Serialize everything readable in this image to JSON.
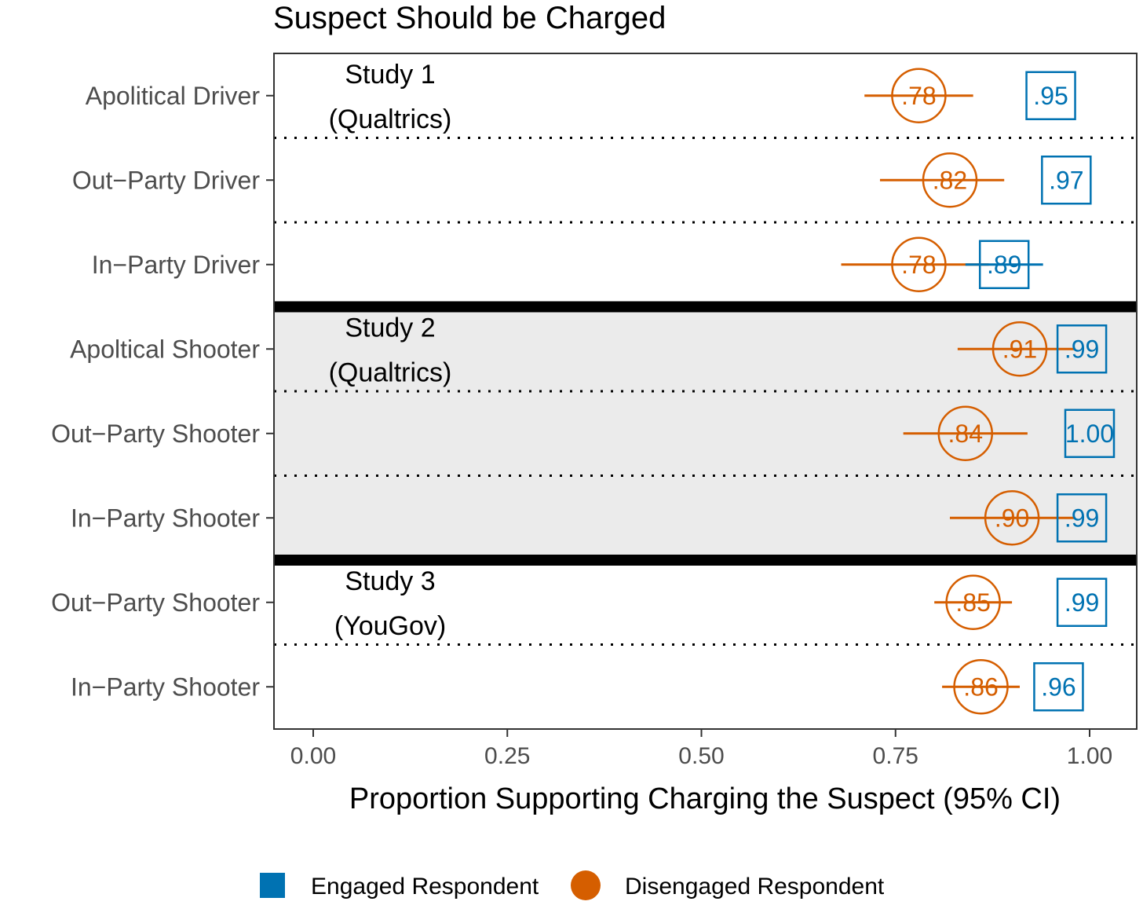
{
  "chart_data": {
    "type": "dot",
    "title": "Suspect Should be Charged",
    "xlabel": "Proportion Supporting Charging the Suspect (95% CI)",
    "ylabel": "",
    "xlim": [
      -0.05,
      1.06
    ],
    "xticks": [
      {
        "value": 0.0,
        "label": "0.00"
      },
      {
        "value": 0.25,
        "label": "0.25"
      },
      {
        "value": 0.5,
        "label": "0.50"
      },
      {
        "value": 0.75,
        "label": "0.75"
      },
      {
        "value": 1.0,
        "label": "1.00"
      }
    ],
    "categories": [
      "Apolitical Driver",
      "Out−Party Driver",
      "In−Party Driver",
      "Apoltical Shooter",
      "Out−Party Shooter",
      "In−Party Shooter",
      "Out−Party Shooter",
      "In−Party Shooter"
    ],
    "groups": [
      {
        "label_line1": "Study 1",
        "label_line2": "(Qualtrics)",
        "rows": [
          0,
          1,
          2
        ],
        "shaded": false
      },
      {
        "label_line1": "Study 2",
        "label_line2": "(Qualtrics)",
        "rows": [
          3,
          4,
          5
        ],
        "shaded": true
      },
      {
        "label_line1": "Study 3",
        "label_line2": "(YouGov)",
        "rows": [
          6,
          7
        ],
        "shaded": false
      }
    ],
    "series": [
      {
        "name": "Engaged Respondent",
        "color": "#0072B2",
        "marker": "square",
        "values": [
          0.95,
          0.97,
          0.89,
          0.99,
          1.0,
          0.99,
          0.99,
          0.96
        ],
        "labels": [
          ".95",
          ".97",
          ".89",
          ".99",
          "1.00",
          ".99",
          ".99",
          ".96"
        ],
        "ci_low": [
          0.95,
          0.97,
          0.84,
          0.99,
          1.0,
          0.99,
          0.99,
          0.96
        ],
        "ci_high": [
          0.95,
          0.97,
          0.94,
          0.99,
          1.0,
          0.99,
          0.99,
          0.96
        ]
      },
      {
        "name": "Disengaged Respondent",
        "color": "#D55E00",
        "marker": "circle",
        "values": [
          0.78,
          0.82,
          0.78,
          0.91,
          0.84,
          0.9,
          0.85,
          0.86
        ],
        "labels": [
          ".78",
          ".82",
          ".78",
          ".91",
          ".84",
          ".90",
          ".85",
          ".86"
        ],
        "ci_low": [
          0.71,
          0.73,
          0.68,
          0.83,
          0.76,
          0.82,
          0.8,
          0.81
        ],
        "ci_high": [
          0.85,
          0.89,
          0.87,
          0.98,
          0.92,
          0.98,
          0.9,
          0.91
        ]
      }
    ],
    "legend_position": "bottom"
  }
}
